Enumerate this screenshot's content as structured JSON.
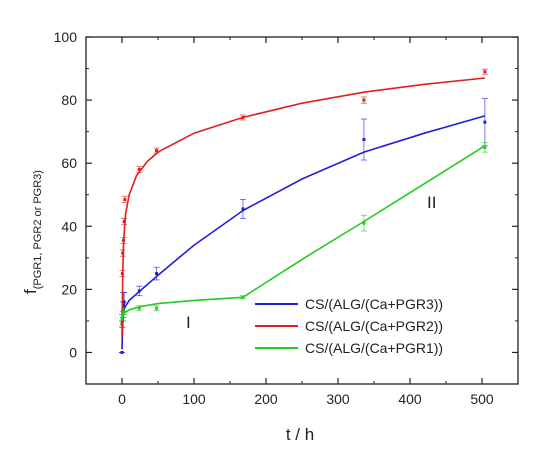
{
  "chart_data": {
    "type": "line",
    "xlabel": "t / h",
    "ylabel_main": "f",
    "ylabel_sub": "(PGR1, PGR2 or PGR3)",
    "xlim": [
      -50,
      550
    ],
    "ylim": [
      -10,
      100
    ],
    "xticks": [
      0,
      100,
      200,
      300,
      400,
      500
    ],
    "yticks": [
      0,
      20,
      40,
      60,
      80,
      100
    ],
    "legend_position": "bottom-right",
    "annotations": [
      "I",
      "II"
    ],
    "series": [
      {
        "name": "CS/(ALG/(Ca+PGR3))",
        "color": "#1f1fdc",
        "points": [
          {
            "x": 0,
            "y": 0,
            "err": 0
          },
          {
            "x": 0.5,
            "y": 10,
            "err": 2
          },
          {
            "x": 1,
            "y": 13,
            "err": 3
          },
          {
            "x": 2,
            "y": 15,
            "err": 4
          },
          {
            "x": 3,
            "y": 16,
            "err": 3
          },
          {
            "x": 24,
            "y": 19.5,
            "err": 1.5
          },
          {
            "x": 48,
            "y": 25,
            "err": 2
          },
          {
            "x": 168,
            "y": 45.5,
            "err": 3
          },
          {
            "x": 336,
            "y": 67.5,
            "err": 6.5
          },
          {
            "x": 504,
            "y": 73,
            "err": 7.5
          }
        ],
        "fit": [
          [
            0,
            1
          ],
          [
            1,
            9.5
          ],
          [
            3,
            14
          ],
          [
            10,
            16.5
          ],
          [
            25,
            19.5
          ],
          [
            50,
            24.5
          ],
          [
            100,
            34
          ],
          [
            168,
            45
          ],
          [
            250,
            55
          ],
          [
            336,
            63.5
          ],
          [
            420,
            69.5
          ],
          [
            504,
            75
          ]
        ]
      },
      {
        "name": "CS/(ALG/(Ca+PGR2))",
        "color": "#e02020",
        "points": [
          {
            "x": 0,
            "y": 9,
            "err": 1
          },
          {
            "x": 0.5,
            "y": 25,
            "err": 1
          },
          {
            "x": 1,
            "y": 31.5,
            "err": 1
          },
          {
            "x": 2,
            "y": 35.5,
            "err": 1
          },
          {
            "x": 3,
            "y": 41.5,
            "err": 1
          },
          {
            "x": 4,
            "y": 48.5,
            "err": 1
          },
          {
            "x": 24,
            "y": 58,
            "err": 1
          },
          {
            "x": 48,
            "y": 64,
            "err": 0.8
          },
          {
            "x": 168,
            "y": 74.5,
            "err": 0.8
          },
          {
            "x": 336,
            "y": 80,
            "err": 1
          },
          {
            "x": 504,
            "y": 89,
            "err": 0.8
          }
        ],
        "fit": [
          [
            0,
            5
          ],
          [
            0.5,
            15
          ],
          [
            1,
            25
          ],
          [
            2,
            33
          ],
          [
            3,
            38
          ],
          [
            5,
            44
          ],
          [
            10,
            50
          ],
          [
            20,
            56
          ],
          [
            35,
            60.5
          ],
          [
            50,
            63.5
          ],
          [
            100,
            69.5
          ],
          [
            168,
            74.5
          ],
          [
            250,
            79
          ],
          [
            336,
            82.5
          ],
          [
            420,
            85
          ],
          [
            504,
            87
          ]
        ]
      },
      {
        "name": "CS/(ALG/(Ca+PGR1))",
        "color": "#22cc22",
        "points": [
          {
            "x": 0,
            "y": 11,
            "err": 1
          },
          {
            "x": 1,
            "y": 12,
            "err": 1
          },
          {
            "x": 3,
            "y": 13,
            "err": 1
          },
          {
            "x": 24,
            "y": 14,
            "err": 0.8
          },
          {
            "x": 48,
            "y": 14,
            "err": 0.8
          },
          {
            "x": 168,
            "y": 17.5,
            "err": 0.5
          },
          {
            "x": 336,
            "y": 41,
            "err": 2.5
          },
          {
            "x": 504,
            "y": 65,
            "err": 1.5
          }
        ],
        "fit": [
          [
            0,
            10
          ],
          [
            1,
            11.5
          ],
          [
            3,
            12.5
          ],
          [
            10,
            13.5
          ],
          [
            25,
            14.5
          ],
          [
            50,
            15.5
          ],
          [
            100,
            16.5
          ],
          [
            168,
            17.5
          ],
          [
            250,
            29.5
          ],
          [
            336,
            41.5
          ],
          [
            420,
            53.5
          ],
          [
            504,
            65.5
          ]
        ]
      }
    ]
  }
}
